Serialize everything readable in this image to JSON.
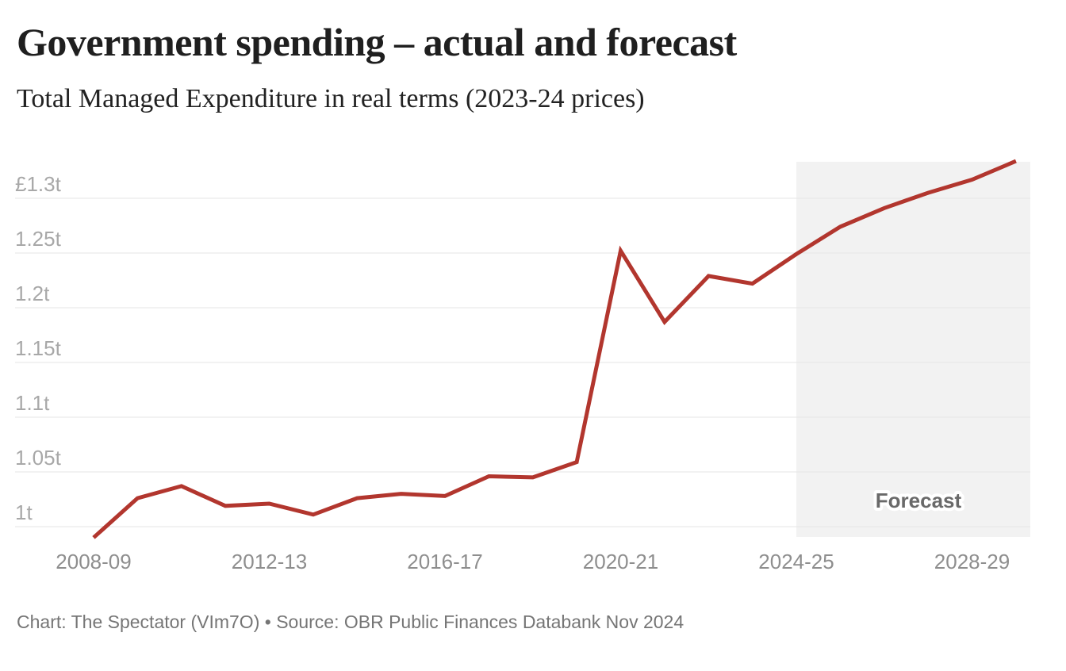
{
  "header": {
    "title": "Government spending – actual and forecast",
    "subtitle": "Total Managed Expenditure in real terms (2023-24 prices)"
  },
  "chart_data": {
    "type": "line",
    "title": "Government spending – actual and forecast",
    "subtitle": "Total Managed Expenditure in real terms (2023-24 prices)",
    "unit": "£ trillion, 2023-24 prices",
    "grid": "horizontal",
    "legend": "none",
    "categories": [
      "2008-09",
      "2009-10",
      "2010-11",
      "2011-12",
      "2012-13",
      "2013-14",
      "2014-15",
      "2015-16",
      "2016-17",
      "2017-18",
      "2018-19",
      "2019-20",
      "2020-21",
      "2021-22",
      "2022-23",
      "2023-24",
      "2024-25",
      "2025-26",
      "2026-27",
      "2027-28",
      "2028-29",
      "2029-30"
    ],
    "series": [
      {
        "name": "Total Managed Expenditure",
        "color": "#b2362e",
        "values": [
          0.99,
          1.026,
          1.037,
          1.019,
          1.021,
          1.011,
          1.026,
          1.03,
          1.028,
          1.046,
          1.045,
          1.059,
          1.252,
          1.187,
          1.229,
          1.222,
          1.249,
          1.274,
          1.291,
          1.305,
          1.317,
          1.334
        ]
      }
    ],
    "x_axis": {
      "tick_labels": [
        "2008-09",
        "2012-13",
        "2016-17",
        "2020-21",
        "2024-25",
        "2028-29"
      ]
    },
    "y_axis": {
      "tick_values": [
        1.3,
        1.25,
        1.2,
        1.15,
        1.1,
        1.05,
        1.0
      ],
      "tick_labels": [
        "£1.3t",
        "1.25t",
        "1.2t",
        "1.15t",
        "1.1t",
        "1.05t",
        "1t"
      ],
      "range": [
        0.99,
        1.334
      ]
    },
    "forecast_region": {
      "label": "Forecast",
      "start_category": "2024-25",
      "fill": "#f2f2f2"
    },
    "colors": {
      "line": "#b2362e",
      "grid": "#e5e5e5",
      "x_axis_text": "#8e8e8e",
      "y_axis_text": "#a8a8a8",
      "forecast_label": "#696969"
    }
  },
  "footer": {
    "credit": "Chart: The Spectator (VIm7O) • Source: OBR Public Finances Databank Nov 2024"
  }
}
